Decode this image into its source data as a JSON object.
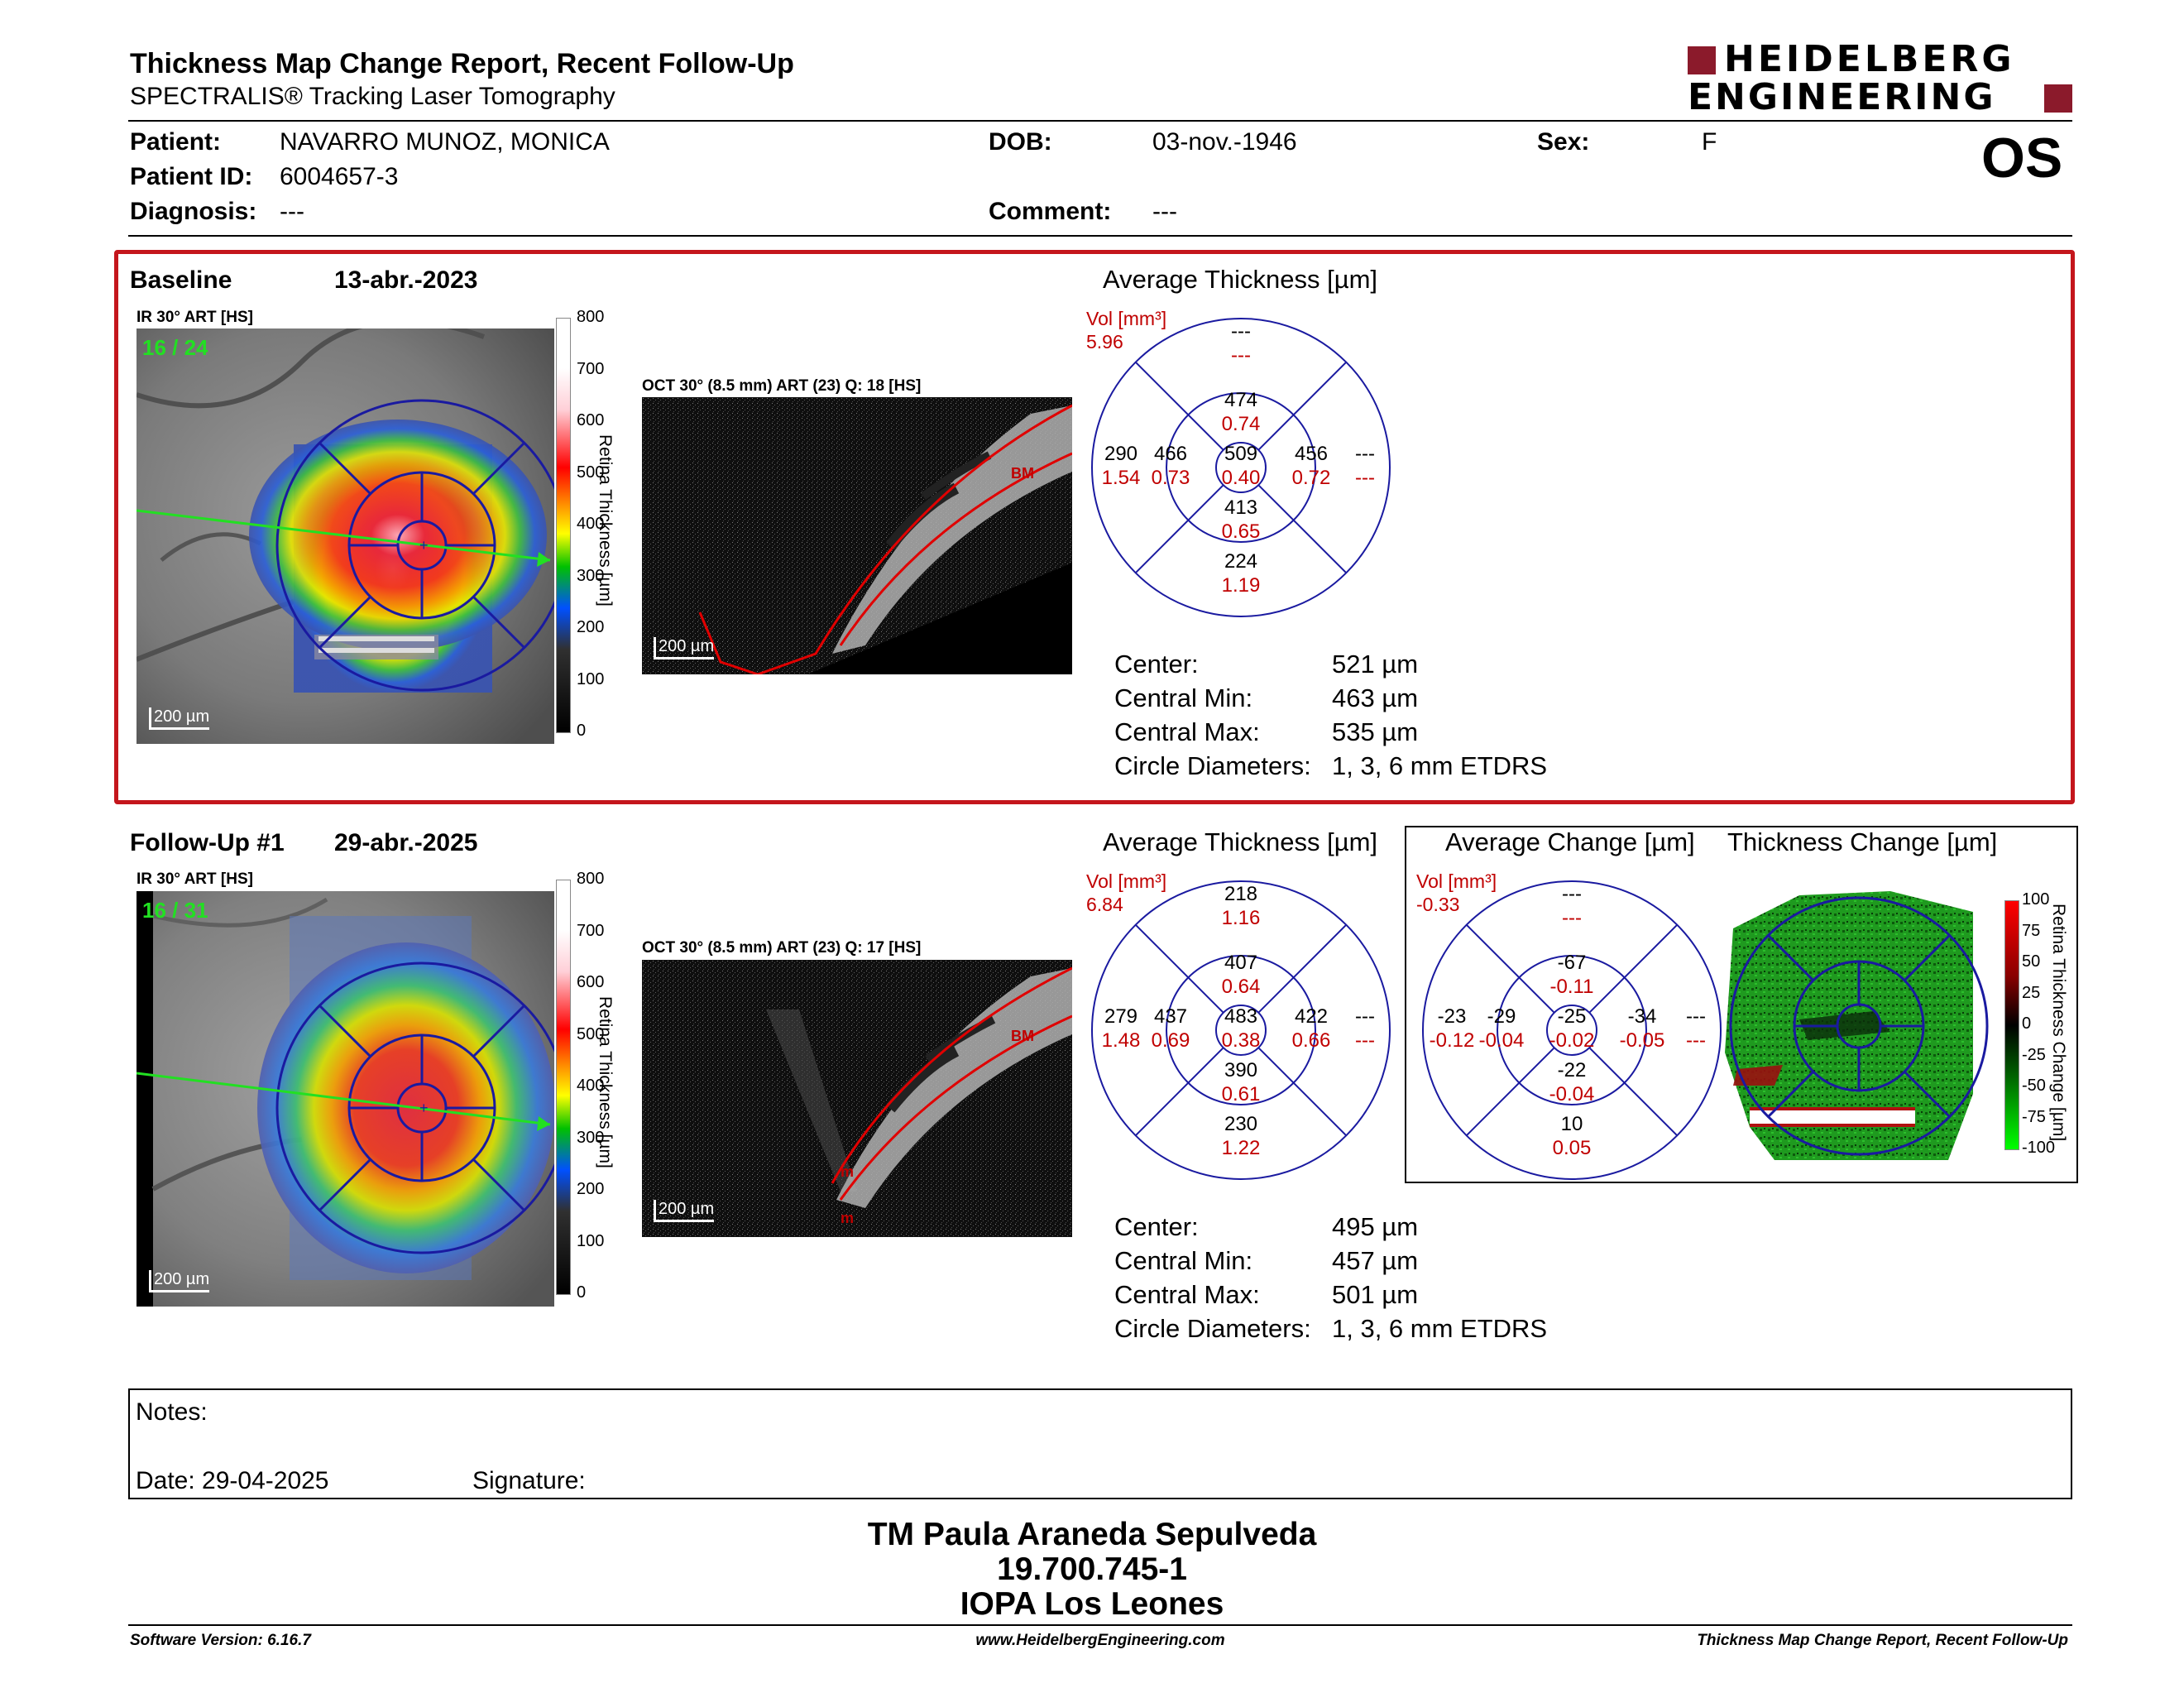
{
  "header": {
    "title": "Thickness Map Change Report, Recent Follow-Up",
    "subtitle": "SPECTRALIS® Tracking Laser Tomography",
    "logo_line1": "HEIDELBERG",
    "logo_line2": "ENGINEERING",
    "eye": "OS"
  },
  "patient": {
    "patient_label": "Patient:",
    "patient_value": "NAVARRO MUNOZ, MONICA",
    "id_label": "Patient ID:",
    "id_value": "6004657-3",
    "diagnosis_label": "Diagnosis:",
    "diagnosis_value": "---",
    "dob_label": "DOB:",
    "dob_value": "03-nov.-1946",
    "comment_label": "Comment:",
    "comment_value": "---",
    "sex_label": "Sex:",
    "sex_value": "F"
  },
  "baseline": {
    "label": "Baseline",
    "date": "13-abr.-2023",
    "ir_label": "IR 30° ART [HS]",
    "frames": "16 / 24",
    "oct_label": "OCT 30° (8.5 mm) ART (23) Q: 18 [HS]",
    "scale": "200 µm",
    "colorbar_ticks": [
      "800",
      "700",
      "600",
      "500",
      "400",
      "300",
      "200",
      "100",
      "0"
    ],
    "colorbar_title": "Retina Thickness [µm]",
    "avg_title": "Average Thickness [µm]",
    "vol_label": "Vol [mm³]",
    "vol_value": "5.96",
    "grid": {
      "outer_top": [
        "---",
        "---"
      ],
      "inner_top": [
        "474",
        "0.74"
      ],
      "outer_left": [
        "290",
        "1.54"
      ],
      "inner_left": [
        "466",
        "0.73"
      ],
      "center": [
        "509",
        "0.40"
      ],
      "inner_right": [
        "456",
        "0.72"
      ],
      "outer_right": [
        "---",
        "---"
      ],
      "inner_bottom": [
        "413",
        "0.65"
      ],
      "outer_bottom": [
        "224",
        "1.19"
      ]
    },
    "stats": {
      "center_label": "Center:",
      "center_value": "521 µm",
      "min_label": "Central Min:",
      "min_value": "463 µm",
      "max_label": "Central Max:",
      "max_value": "535 µm",
      "diam_label": "Circle Diameters:",
      "diam_value": "1, 3, 6 mm ETDRS"
    }
  },
  "followup": {
    "label": "Follow-Up #1",
    "date": "29-abr.-2025",
    "ir_label": "IR 30° ART [HS]",
    "frames": "16 / 31",
    "oct_label": "OCT 30° (8.5 mm) ART (23) Q: 17 [HS]",
    "scale": "200 µm",
    "colorbar_ticks": [
      "800",
      "700",
      "600",
      "500",
      "400",
      "300",
      "200",
      "100",
      "0"
    ],
    "colorbar_title": "Retina Thickness [µm]",
    "avg_title": "Average Thickness [µm]",
    "vol_label": "Vol [mm³]",
    "vol_value": "6.84",
    "grid": {
      "outer_top": [
        "218",
        "1.16"
      ],
      "inner_top": [
        "407",
        "0.64"
      ],
      "outer_left": [
        "279",
        "1.48"
      ],
      "inner_left": [
        "437",
        "0.69"
      ],
      "center": [
        "483",
        "0.38"
      ],
      "inner_right": [
        "422",
        "0.66"
      ],
      "outer_right": [
        "---",
        "---"
      ],
      "inner_bottom": [
        "390",
        "0.61"
      ],
      "outer_bottom": [
        "230",
        "1.22"
      ]
    },
    "stats": {
      "center_label": "Center:",
      "center_value": "495 µm",
      "min_label": "Central Min:",
      "min_value": "457 µm",
      "max_label": "Central Max:",
      "max_value": "501 µm",
      "diam_label": "Circle Diameters:",
      "diam_value": "1, 3, 6 mm ETDRS"
    },
    "change": {
      "avg_title": "Average Change [µm]",
      "map_title": "Thickness Change [µm]",
      "vol_label": "Vol [mm³]",
      "vol_value": "-0.33",
      "grid": {
        "outer_top": [
          "---",
          "---"
        ],
        "inner_top": [
          "-67",
          "-0.11"
        ],
        "outer_left": [
          "-23",
          "-0.12"
        ],
        "inner_left": [
          "-29",
          "-0.04"
        ],
        "center": [
          "-25",
          "-0.02"
        ],
        "inner_right": [
          "-34",
          "-0.05"
        ],
        "outer_right": [
          "---",
          "---"
        ],
        "inner_bottom": [
          "-22",
          "-0.04"
        ],
        "outer_bottom": [
          "10",
          "0.05"
        ]
      },
      "colorbar_ticks": [
        "100",
        "75",
        "50",
        "25",
        "0",
        "-25",
        "-50",
        "-75",
        "-100"
      ],
      "colorbar_title": "Retina Thickness Change [µm]"
    }
  },
  "notes": {
    "notes_label": "Notes:",
    "date_label": "Date: 29-04-2025",
    "signature_label": "Signature:"
  },
  "signature_block": {
    "line1": "TM Paula Araneda Sepulveda",
    "line2": "19.700.745-1",
    "line3": "IOPA Los Leones"
  },
  "footer": {
    "software": "Software Version: 6.16.7",
    "url": "www.HeidelbergEngineering.com",
    "report": "Thickness Map Change Report, Recent Follow-Up"
  },
  "colors": {
    "accent_red": "#c4161c",
    "grid_blue": "#1a1aa0",
    "value_red": "#c00000"
  }
}
